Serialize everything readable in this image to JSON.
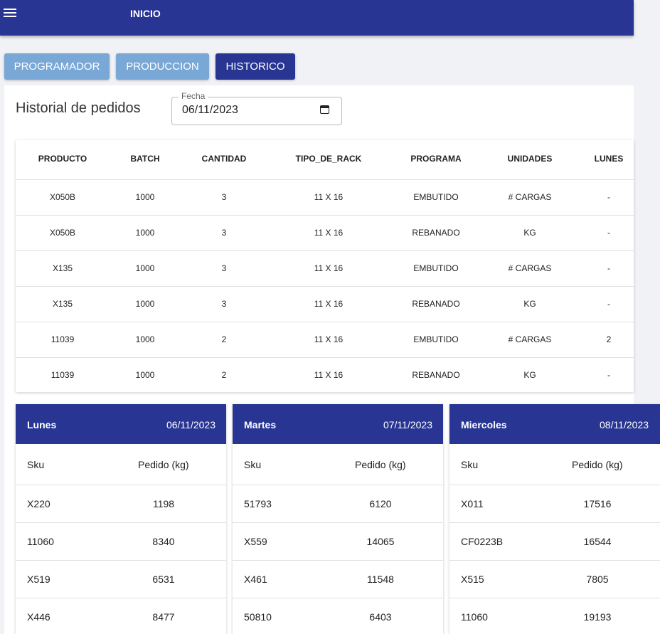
{
  "app_bar": {
    "title": "INICIO"
  },
  "tabs": [
    "PROGRAMADOR",
    "PRODUCCION",
    "HISTORICO"
  ],
  "page_title": "Historial de pedidos",
  "date_field": {
    "label": "Fecha",
    "value": "06/11/2023"
  },
  "table": {
    "columns": [
      "PRODUCTO",
      "BATCH",
      "CANTIDAD",
      "TIPO_DE_RACK",
      "PROGRAMA",
      "UNIDADES",
      "LUNES"
    ],
    "rows": [
      [
        "X050B",
        "1000",
        "3",
        "11 X 16",
        "EMBUTIDO",
        "# CARGAS",
        "-"
      ],
      [
        "X050B",
        "1000",
        "3",
        "11 X 16",
        "REBANADO",
        "KG",
        "-"
      ],
      [
        "X135",
        "1000",
        "3",
        "11 X 16",
        "EMBUTIDO",
        "# CARGAS",
        "-"
      ],
      [
        "X135",
        "1000",
        "3",
        "11 X 16",
        "REBANADO",
        "KG",
        "-"
      ],
      [
        "11039",
        "1000",
        "2",
        "11 X 16",
        "EMBUTIDO",
        "# CARGAS",
        "2"
      ],
      [
        "11039",
        "1000",
        "2",
        "11 X 16",
        "REBANADO",
        "KG",
        "-"
      ]
    ]
  },
  "day_cards": [
    {
      "day": "Lunes",
      "date": "06/11/2023",
      "columns": [
        "Sku",
        "Pedido (kg)"
      ],
      "rows": [
        [
          "X220",
          "1198"
        ],
        [
          "11060",
          "8340"
        ],
        [
          "X519",
          "6531"
        ],
        [
          "X446",
          "8477"
        ]
      ]
    },
    {
      "day": "Martes",
      "date": "07/11/2023",
      "columns": [
        "Sku",
        "Pedido (kg)"
      ],
      "rows": [
        [
          "51793",
          "6120"
        ],
        [
          "X559",
          "14065"
        ],
        [
          "X461",
          "11548"
        ],
        [
          "50810",
          "6403"
        ]
      ]
    },
    {
      "day": "Miercoles",
      "date": "08/11/2023",
      "columns": [
        "Sku",
        "Pedido (kg)"
      ],
      "rows": [
        [
          "X011",
          "17516"
        ],
        [
          "CF0223B",
          "16544"
        ],
        [
          "X515",
          "7805"
        ],
        [
          "11060",
          "19193"
        ]
      ]
    }
  ]
}
